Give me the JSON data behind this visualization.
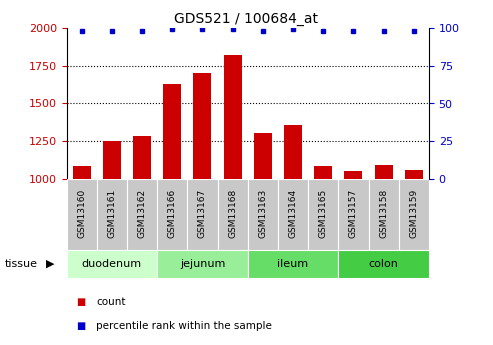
{
  "title": "GDS521 / 100684_at",
  "samples": [
    "GSM13160",
    "GSM13161",
    "GSM13162",
    "GSM13166",
    "GSM13167",
    "GSM13168",
    "GSM13163",
    "GSM13164",
    "GSM13165",
    "GSM13157",
    "GSM13158",
    "GSM13159"
  ],
  "counts": [
    1090,
    1250,
    1285,
    1630,
    1700,
    1820,
    1305,
    1360,
    1090,
    1055,
    1095,
    1065
  ],
  "percentile_ranks": [
    98,
    98,
    98,
    99,
    99,
    99,
    98,
    99,
    98,
    98,
    98,
    98
  ],
  "tissues": [
    {
      "label": "duodenum",
      "start": 0,
      "end": 3,
      "color": "#ccffcc"
    },
    {
      "label": "jejunum",
      "start": 3,
      "end": 6,
      "color": "#99ee99"
    },
    {
      "label": "ileum",
      "start": 6,
      "end": 9,
      "color": "#66dd66"
    },
    {
      "label": "colon",
      "start": 9,
      "end": 12,
      "color": "#44cc44"
    }
  ],
  "ylim_left": [
    1000,
    2000
  ],
  "ylim_right": [
    0,
    100
  ],
  "yticks_left": [
    1000,
    1250,
    1500,
    1750,
    2000
  ],
  "yticks_right": [
    0,
    25,
    50,
    75,
    100
  ],
  "bar_color": "#cc0000",
  "dot_color": "#0000cc",
  "label_color_left": "#cc0000",
  "label_color_right": "#0000cc",
  "grid_color": "#000000",
  "sample_bg_color": "#c8c8c8",
  "legend_count_label": "count",
  "legend_pct_label": "percentile rank within the sample"
}
